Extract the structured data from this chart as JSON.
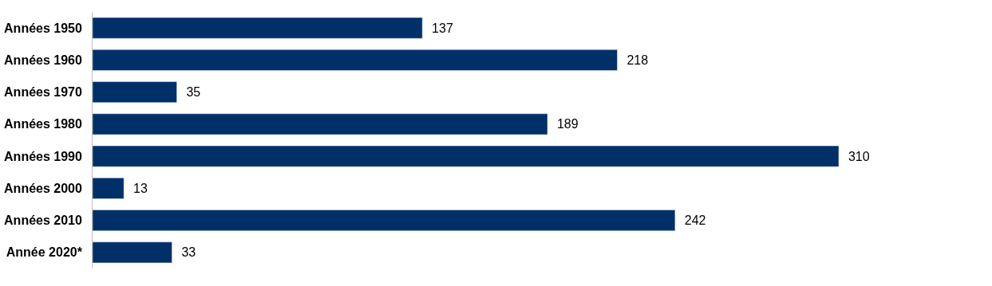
{
  "chart_data": {
    "type": "bar",
    "orientation": "horizontal",
    "categories": [
      "Années 1950",
      "Années 1960",
      "Années 1970",
      "Années 1980",
      "Années 1990",
      "Années 2000",
      "Années 2010",
      "Année 2020*"
    ],
    "values": [
      137,
      218,
      35,
      189,
      310,
      13,
      242,
      33
    ],
    "color": "#003067",
    "data_labels": true
  }
}
